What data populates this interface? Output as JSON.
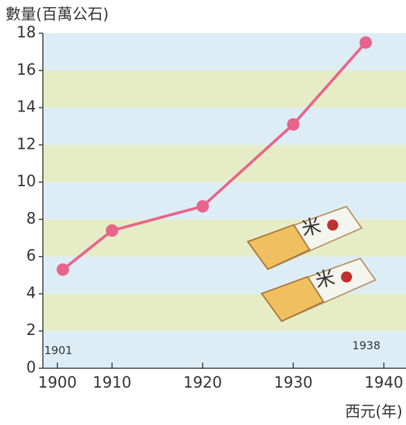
{
  "chart_data": {
    "type": "line",
    "y_label": "數量(百萬公石)",
    "x_label": "西元(年)",
    "x": [
      1901,
      1910,
      1920,
      1930,
      1938
    ],
    "series": [
      {
        "color": "#e8648a",
        "values": [
          5.3,
          7.4,
          8.7,
          13.1,
          17.5
        ]
      }
    ],
    "xlim": [
      1900,
      1940
    ],
    "xticks": [
      1900,
      1910,
      1920,
      1930,
      1940
    ],
    "ylim": [
      0,
      18
    ],
    "yticks": [
      0,
      2,
      4,
      6,
      8,
      10,
      12,
      14,
      16,
      18
    ],
    "band_colors": [
      "#dcedf6",
      "#e6edc6"
    ],
    "annotations": [
      "1901",
      "1938"
    ]
  }
}
